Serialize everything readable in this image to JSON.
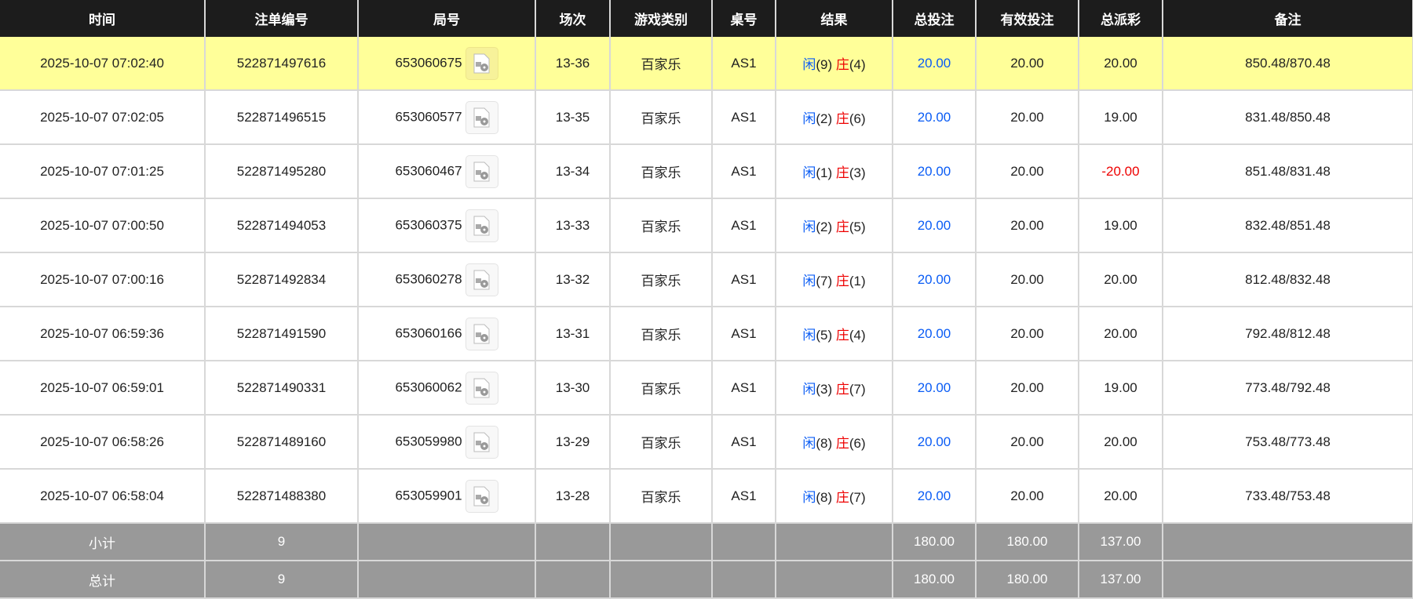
{
  "headers": [
    "时间",
    "注单编号",
    "局号",
    "场次",
    "游戏类别",
    "桌号",
    "结果",
    "总投注",
    "有效投注",
    "总派彩",
    "备注"
  ],
  "rows": [
    {
      "time": "2025-10-07 07:02:40",
      "order": "522871497616",
      "round": "653060675",
      "session": "13-36",
      "game": "百家乐",
      "table": "AS1",
      "p_label": "闲",
      "p": "(9)",
      "b_label": "庄",
      "b": "(4)",
      "bet": "20.00",
      "valid": "20.00",
      "payout": "20.00",
      "payout_negative": false,
      "note": "850.48/870.48",
      "highlight": true
    },
    {
      "time": "2025-10-07 07:02:05",
      "order": "522871496515",
      "round": "653060577",
      "session": "13-35",
      "game": "百家乐",
      "table": "AS1",
      "p_label": "闲",
      "p": "(2)",
      "b_label": "庄",
      "b": "(6)",
      "bet": "20.00",
      "valid": "20.00",
      "payout": "19.00",
      "payout_negative": false,
      "note": "831.48/850.48"
    },
    {
      "time": "2025-10-07 07:01:25",
      "order": "522871495280",
      "round": "653060467",
      "session": "13-34",
      "game": "百家乐",
      "table": "AS1",
      "p_label": "闲",
      "p": "(1)",
      "b_label": "庄",
      "b": "(3)",
      "bet": "20.00",
      "valid": "20.00",
      "payout": "-20.00",
      "payout_negative": true,
      "note": "851.48/831.48"
    },
    {
      "time": "2025-10-07 07:00:50",
      "order": "522871494053",
      "round": "653060375",
      "session": "13-33",
      "game": "百家乐",
      "table": "AS1",
      "p_label": "闲",
      "p": "(2)",
      "b_label": "庄",
      "b": "(5)",
      "bet": "20.00",
      "valid": "20.00",
      "payout": "19.00",
      "payout_negative": false,
      "note": "832.48/851.48"
    },
    {
      "time": "2025-10-07 07:00:16",
      "order": "522871492834",
      "round": "653060278",
      "session": "13-32",
      "game": "百家乐",
      "table": "AS1",
      "p_label": "闲",
      "p": "(7)",
      "b_label": "庄",
      "b": "(1)",
      "bet": "20.00",
      "valid": "20.00",
      "payout": "20.00",
      "payout_negative": false,
      "note": "812.48/832.48"
    },
    {
      "time": "2025-10-07 06:59:36",
      "order": "522871491590",
      "round": "653060166",
      "session": "13-31",
      "game": "百家乐",
      "table": "AS1",
      "p_label": "闲",
      "p": "(5)",
      "b_label": "庄",
      "b": "(4)",
      "bet": "20.00",
      "valid": "20.00",
      "payout": "20.00",
      "payout_negative": false,
      "note": "792.48/812.48"
    },
    {
      "time": "2025-10-07 06:59:01",
      "order": "522871490331",
      "round": "653060062",
      "session": "13-30",
      "game": "百家乐",
      "table": "AS1",
      "p_label": "闲",
      "p": "(3)",
      "b_label": "庄",
      "b": "(7)",
      "bet": "20.00",
      "valid": "20.00",
      "payout": "19.00",
      "payout_negative": false,
      "note": "773.48/792.48"
    },
    {
      "time": "2025-10-07 06:58:26",
      "order": "522871489160",
      "round": "653059980",
      "session": "13-29",
      "game": "百家乐",
      "table": "AS1",
      "p_label": "闲",
      "p": "(8)",
      "b_label": "庄",
      "b": "(6)",
      "bet": "20.00",
      "valid": "20.00",
      "payout": "20.00",
      "payout_negative": false,
      "note": "753.48/773.48"
    },
    {
      "time": "2025-10-07 06:58:04",
      "order": "522871488380",
      "round": "653059901",
      "session": "13-28",
      "game": "百家乐",
      "table": "AS1",
      "p_label": "闲",
      "p": "(8)",
      "b_label": "庄",
      "b": "(7)",
      "bet": "20.00",
      "valid": "20.00",
      "payout": "20.00",
      "payout_negative": false,
      "note": "733.48/753.48"
    }
  ],
  "subtotal": {
    "label": "小计",
    "count": "9",
    "bet": "180.00",
    "valid": "180.00",
    "payout": "137.00"
  },
  "total": {
    "label": "总计",
    "count": "9",
    "bet": "180.00",
    "valid": "180.00",
    "payout": "137.00"
  },
  "icons": {
    "replay": "video-file-icon"
  },
  "colors": {
    "header_bg": "#1c1c1c",
    "highlight_row": "#ffff99",
    "player": "#0a5cf5",
    "banker": "#e00000",
    "summary_bg": "#999999"
  }
}
